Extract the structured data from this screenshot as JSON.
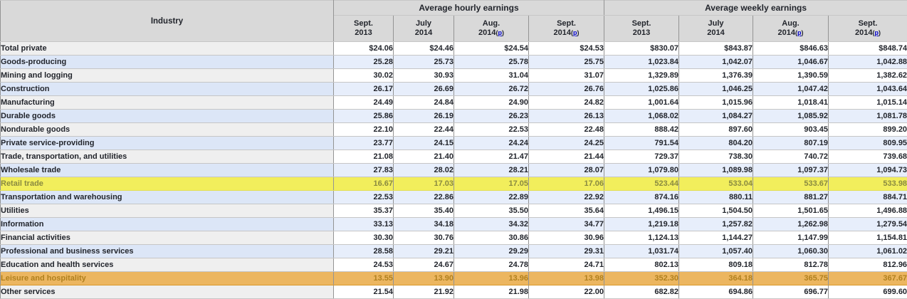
{
  "header": {
    "industry_label": "Industry",
    "groups": [
      {
        "label": "Average hourly earnings"
      },
      {
        "label": "Average weekly earnings"
      }
    ],
    "columns": [
      {
        "month": "Sept.",
        "year": "2013",
        "preliminary": false
      },
      {
        "month": "July",
        "year": "2014",
        "preliminary": false
      },
      {
        "month": "Aug.",
        "year": "2014",
        "preliminary": true
      },
      {
        "month": "Sept.",
        "year": "2014",
        "preliminary": true
      }
    ],
    "preliminary_mark": "p"
  },
  "rows": [
    {
      "industry": "Total private",
      "indent": 0,
      "highlight": "none",
      "hourly": [
        "$24.06",
        "$24.46",
        "$24.54",
        "$24.53"
      ],
      "weekly": [
        "$830.07",
        "$843.87",
        "$846.63",
        "$848.74"
      ]
    },
    {
      "industry": "Goods-producing",
      "indent": 1,
      "highlight": "none",
      "hourly": [
        "25.28",
        "25.73",
        "25.78",
        "25.75"
      ],
      "weekly": [
        "1,023.84",
        "1,042.07",
        "1,046.67",
        "1,042.88"
      ]
    },
    {
      "industry": "Mining and logging",
      "indent": 2,
      "highlight": "none",
      "hourly": [
        "30.02",
        "30.93",
        "31.04",
        "31.07"
      ],
      "weekly": [
        "1,329.89",
        "1,376.39",
        "1,390.59",
        "1,382.62"
      ]
    },
    {
      "industry": "Construction",
      "indent": 2,
      "highlight": "none",
      "hourly": [
        "26.17",
        "26.69",
        "26.72",
        "26.76"
      ],
      "weekly": [
        "1,025.86",
        "1,046.25",
        "1,047.42",
        "1,043.64"
      ]
    },
    {
      "industry": "Manufacturing",
      "indent": 2,
      "highlight": "none",
      "hourly": [
        "24.49",
        "24.84",
        "24.90",
        "24.82"
      ],
      "weekly": [
        "1,001.64",
        "1,015.96",
        "1,018.41",
        "1,015.14"
      ]
    },
    {
      "industry": "Durable goods",
      "indent": 3,
      "highlight": "none",
      "hourly": [
        "25.86",
        "26.19",
        "26.23",
        "26.13"
      ],
      "weekly": [
        "1,068.02",
        "1,084.27",
        "1,085.92",
        "1,081.78"
      ]
    },
    {
      "industry": "Nondurable goods",
      "indent": 3,
      "highlight": "none",
      "hourly": [
        "22.10",
        "22.44",
        "22.53",
        "22.48"
      ],
      "weekly": [
        "888.42",
        "897.60",
        "903.45",
        "899.20"
      ]
    },
    {
      "industry": "Private service-providing",
      "indent": 1,
      "highlight": "none",
      "hourly": [
        "23.77",
        "24.15",
        "24.24",
        "24.25"
      ],
      "weekly": [
        "791.54",
        "804.20",
        "807.19",
        "809.95"
      ]
    },
    {
      "industry": "Trade, transportation, and utilities",
      "indent": 2,
      "highlight": "none",
      "hourly": [
        "21.08",
        "21.40",
        "21.47",
        "21.44"
      ],
      "weekly": [
        "729.37",
        "738.30",
        "740.72",
        "739.68"
      ]
    },
    {
      "industry": "Wholesale trade",
      "indent": 3,
      "highlight": "none",
      "hourly": [
        "27.83",
        "28.02",
        "28.21",
        "28.07"
      ],
      "weekly": [
        "1,079.80",
        "1,089.98",
        "1,097.37",
        "1,094.73"
      ]
    },
    {
      "industry": "Retail trade",
      "indent": 3,
      "highlight": "yellow",
      "hourly": [
        "16.67",
        "17.03",
        "17.05",
        "17.06"
      ],
      "weekly": [
        "523.44",
        "533.04",
        "533.67",
        "533.98"
      ]
    },
    {
      "industry": "Transportation and warehousing",
      "indent": 3,
      "highlight": "none",
      "hourly": [
        "22.53",
        "22.86",
        "22.89",
        "22.92"
      ],
      "weekly": [
        "874.16",
        "880.11",
        "881.27",
        "884.71"
      ]
    },
    {
      "industry": "Utilities",
      "indent": 3,
      "highlight": "none",
      "hourly": [
        "35.37",
        "35.40",
        "35.50",
        "35.64"
      ],
      "weekly": [
        "1,496.15",
        "1,504.50",
        "1,501.65",
        "1,496.88"
      ]
    },
    {
      "industry": "Information",
      "indent": 2,
      "highlight": "none",
      "hourly": [
        "33.13",
        "34.18",
        "34.32",
        "34.77"
      ],
      "weekly": [
        "1,219.18",
        "1,257.82",
        "1,262.98",
        "1,279.54"
      ]
    },
    {
      "industry": "Financial activities",
      "indent": 2,
      "highlight": "none",
      "hourly": [
        "30.30",
        "30.76",
        "30.86",
        "30.96"
      ],
      "weekly": [
        "1,124.13",
        "1,144.27",
        "1,147.99",
        "1,154.81"
      ]
    },
    {
      "industry": "Professional and business services",
      "indent": 2,
      "highlight": "none",
      "hourly": [
        "28.58",
        "29.21",
        "29.29",
        "29.31"
      ],
      "weekly": [
        "1,031.74",
        "1,057.40",
        "1,060.30",
        "1,061.02"
      ]
    },
    {
      "industry": "Education and health services",
      "indent": 2,
      "highlight": "none",
      "hourly": [
        "24.53",
        "24.67",
        "24.78",
        "24.71"
      ],
      "weekly": [
        "802.13",
        "809.18",
        "812.78",
        "812.96"
      ]
    },
    {
      "industry": "Leisure and hospitality",
      "indent": 2,
      "highlight": "orange",
      "hourly": [
        "13.55",
        "13.90",
        "13.96",
        "13.98"
      ],
      "weekly": [
        "352.30",
        "364.18",
        "365.75",
        "367.67"
      ]
    },
    {
      "industry": "Other services",
      "indent": 2,
      "highlight": "none",
      "hourly": [
        "21.54",
        "21.92",
        "21.98",
        "22.00"
      ],
      "weekly": [
        "682.82",
        "694.86",
        "696.77",
        "699.60"
      ]
    }
  ],
  "colors": {
    "highlight_yellow": "#f2ee5c",
    "highlight_yellow_text": "#8a8a40",
    "highlight_orange": "#ecb660",
    "highlight_orange_text": "#b0801e",
    "row_blue": "#e7eefb",
    "row_blue_label": "#dce6f7",
    "row_gray_label": "#efefef",
    "header_gray": "#d9d9d9",
    "link_blue": "#0000cc"
  }
}
